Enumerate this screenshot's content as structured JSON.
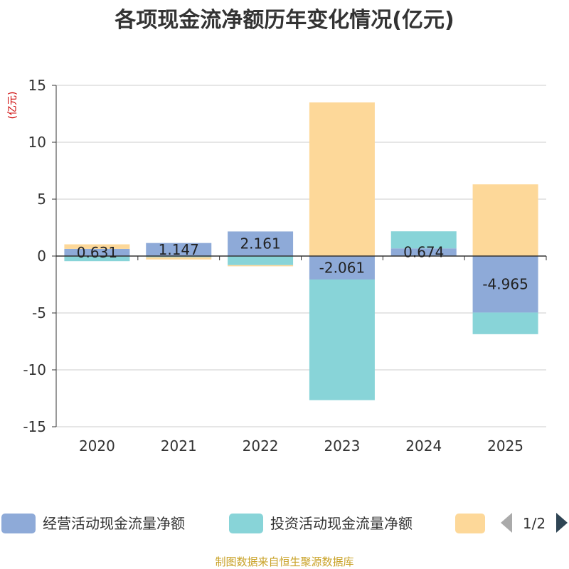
{
  "chart_data": {
    "type": "bar",
    "stacked": true,
    "title": "各项现金流净额历年变化情况(亿元)",
    "ylabel": "(亿元)",
    "xlabel": "",
    "ylim": [
      -15,
      15
    ],
    "yticks": [
      15,
      10,
      5,
      0,
      -5,
      -10,
      -15
    ],
    "grid": true,
    "categories": [
      "2020",
      "2021",
      "2022",
      "2023",
      "2024",
      "2025"
    ],
    "series": [
      {
        "name": "经营活动现金流量净额",
        "color": "#8eaad8",
        "values": [
          0.631,
          1.147,
          2.161,
          -2.061,
          0.674,
          -4.965
        ],
        "labels": [
          "0.631",
          "1.147",
          "2.161",
          "-2.061",
          "0.674",
          "-4.965"
        ]
      },
      {
        "name": "投资活动现金流量净额",
        "color": "#88d4d8",
        "values": [
          -0.45,
          -0.1,
          -0.8,
          -10.6,
          1.5,
          -1.9
        ]
      },
      {
        "name": "",
        "color": "#fdd899",
        "values": [
          0.4,
          -0.2,
          -0.1,
          13.5,
          0.0,
          6.3
        ]
      }
    ],
    "legend": {
      "position": "bottom",
      "page": "1/2"
    }
  },
  "source_text": "制图数据来自恒生聚源数据库"
}
